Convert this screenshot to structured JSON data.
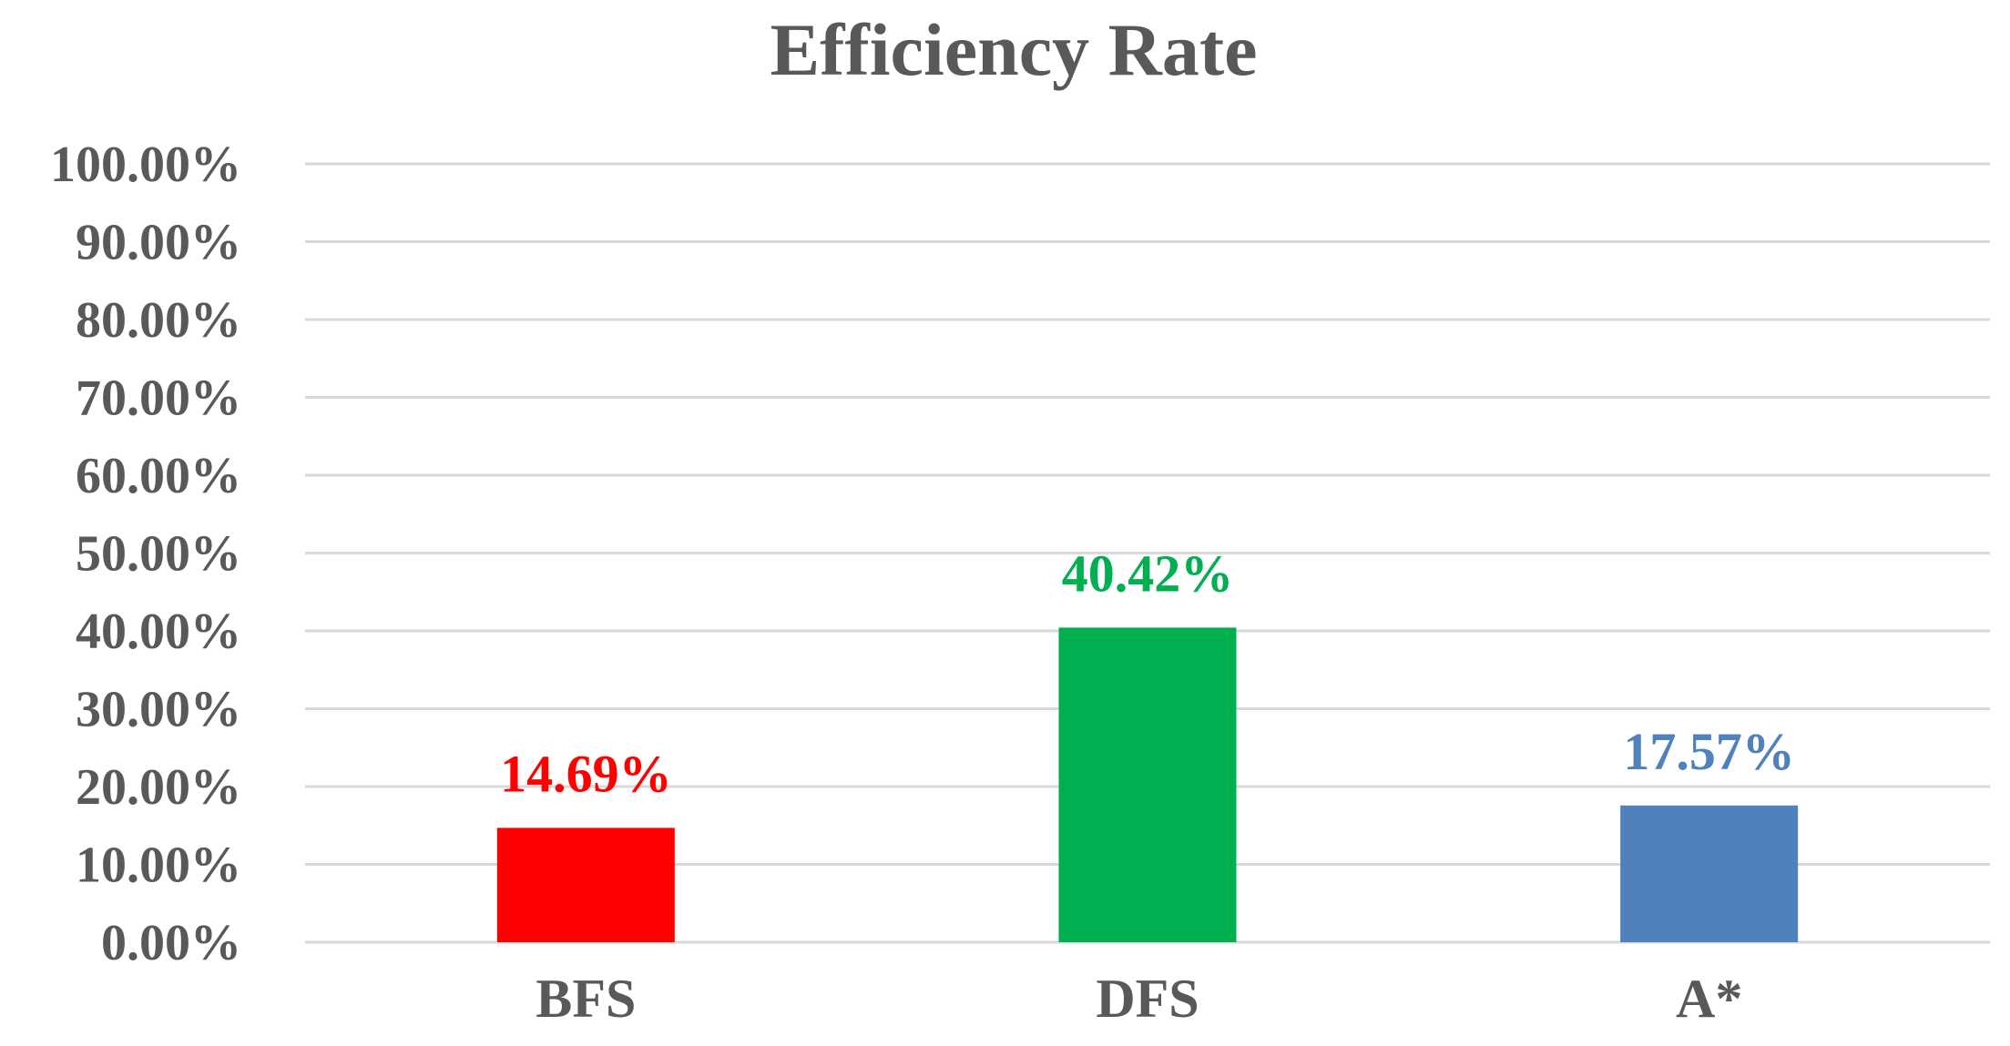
{
  "chart_data": {
    "type": "bar",
    "title": "Efficiency Rate",
    "xlabel": "",
    "ylabel": "",
    "categories": [
      "BFS",
      "DFS",
      "A*"
    ],
    "values": [
      14.69,
      40.42,
      17.57
    ],
    "value_labels": [
      "14.69%",
      "40.42%",
      "17.57%"
    ],
    "bar_colors": [
      "#ff0000",
      "#00b050",
      "#4f81bd"
    ],
    "ylim": [
      0,
      100
    ],
    "y_ticks": [
      0,
      10,
      20,
      30,
      40,
      50,
      60,
      70,
      80,
      90,
      100
    ],
    "y_tick_labels": [
      "0.00%",
      "10.00%",
      "20.00%",
      "30.00%",
      "40.00%",
      "50.00%",
      "60.00%",
      "70.00%",
      "80.00%",
      "90.00%",
      "100.00%"
    ],
    "grid": true,
    "legend": "none"
  },
  "colors": {
    "text": "#595959",
    "gridline": "#d9d9d9"
  }
}
